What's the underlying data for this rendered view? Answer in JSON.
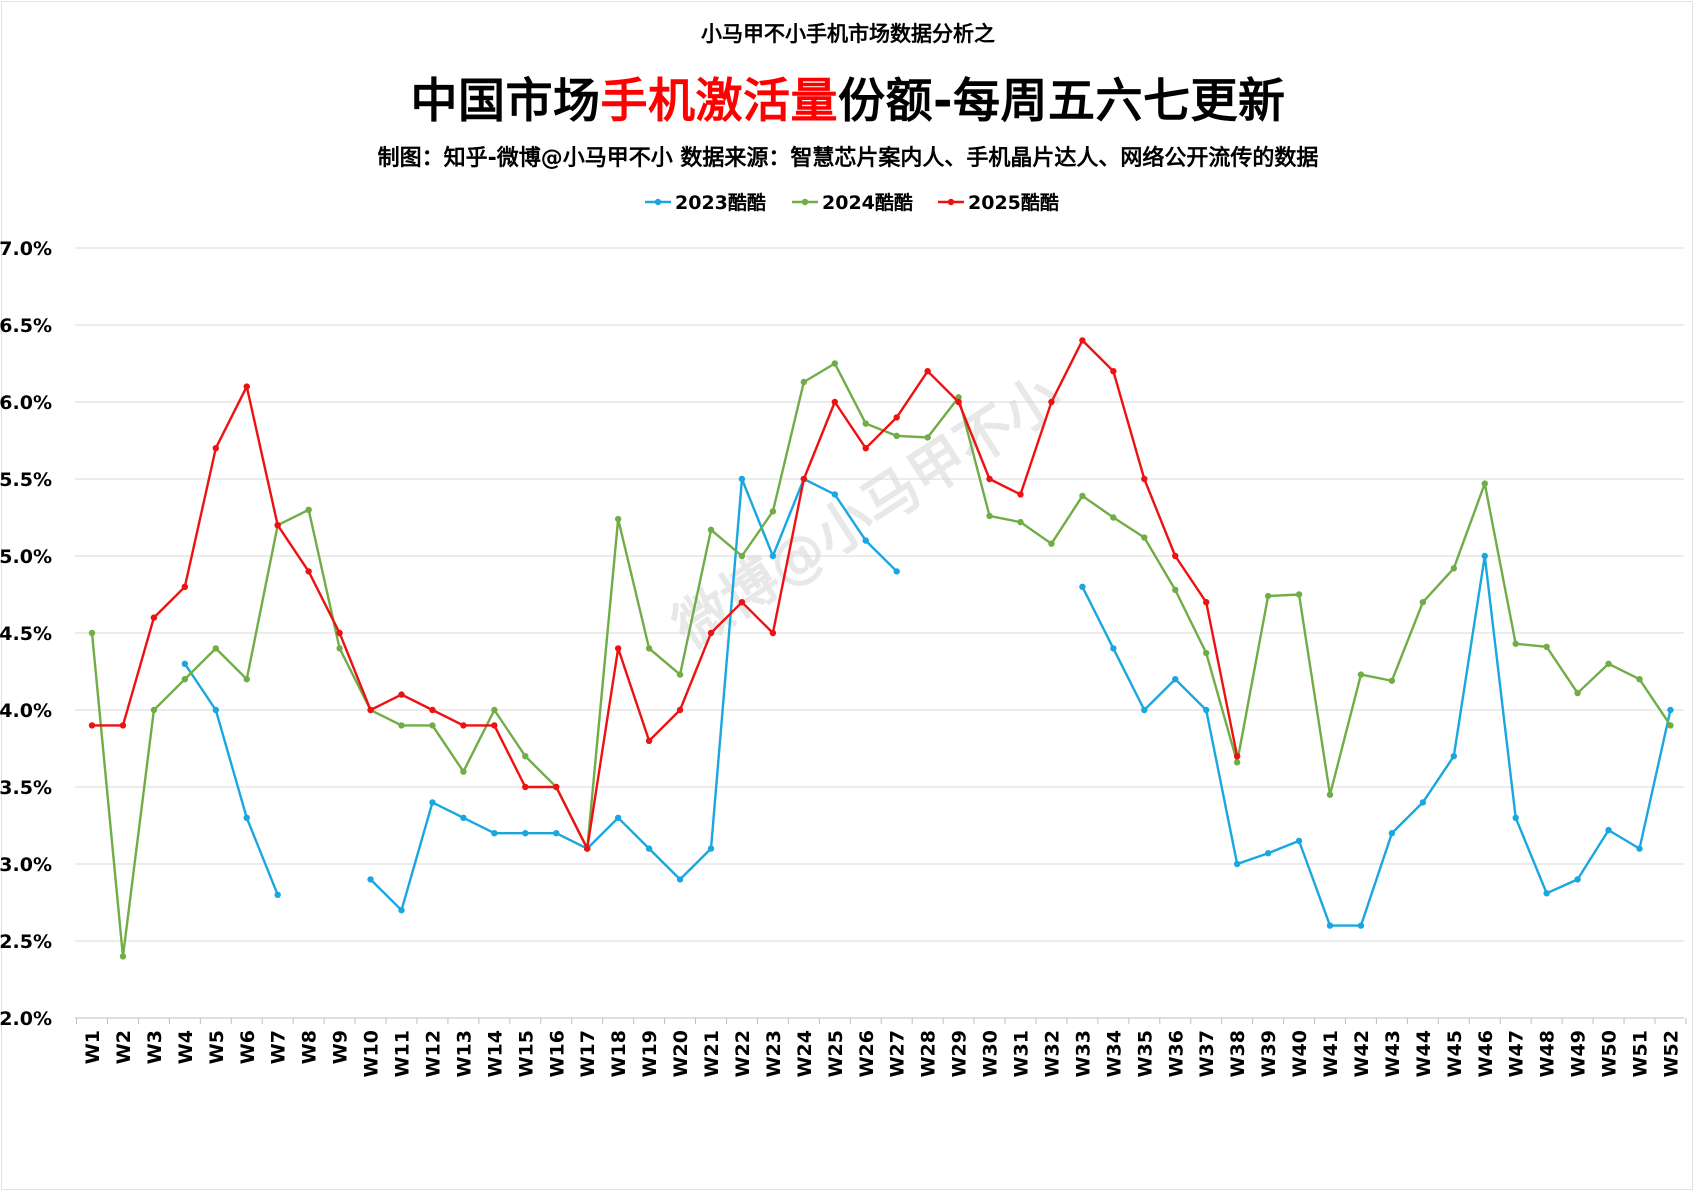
{
  "header": {
    "supertitle": "小马甲不小手机市场数据分析之",
    "title_before": "中国市场",
    "title_highlight": "手机激活量",
    "title_after": "份额-每周五六七更新",
    "subtitle": "制图：知乎-微博@小马甲不小   数据来源：智慧芯片案内人、手机晶片达人、网络公开流传的数据",
    "watermark": "微博@小马甲不小"
  },
  "colors": {
    "highlight": "#ff0000",
    "grid": "#d9d9d9",
    "axis": "#bfbfbf"
  },
  "chart_data": {
    "type": "line",
    "title": "中国市场手机激活量份额-每周五六七更新",
    "xlabel": "",
    "ylabel": "",
    "ylim": [
      0.02,
      0.07
    ],
    "yticks": [
      "2.0%",
      "2.5%",
      "3.0%",
      "3.5%",
      "4.0%",
      "4.5%",
      "5.0%",
      "5.5%",
      "6.0%",
      "6.5%",
      "7.0%"
    ],
    "grid": true,
    "legend_position": "top-center",
    "categories": [
      "W1",
      "W2",
      "W3",
      "W4",
      "W5",
      "W6",
      "W7",
      "W8",
      "W9",
      "W10",
      "W11",
      "W12",
      "W13",
      "W14",
      "W15",
      "W16",
      "W17",
      "W18",
      "W19",
      "W20",
      "W21",
      "W22",
      "W23",
      "W24",
      "W25",
      "W26",
      "W27",
      "W28",
      "W29",
      "W30",
      "W31",
      "W32",
      "W33",
      "W34",
      "W35",
      "W36",
      "W37",
      "W38",
      "W39",
      "W40",
      "W41",
      "W42",
      "W43",
      "W44",
      "W45",
      "W46",
      "W47",
      "W48",
      "W49",
      "W50",
      "W51",
      "W52"
    ],
    "series": [
      {
        "name": "2023酷酷",
        "color": "#1aa7e0",
        "values": [
          null,
          null,
          null,
          0.043,
          0.04,
          0.033,
          0.028,
          null,
          null,
          0.029,
          0.027,
          0.034,
          0.033,
          0.032,
          0.032,
          0.032,
          0.031,
          0.033,
          0.031,
          0.029,
          0.031,
          0.055,
          0.05,
          0.055,
          0.054,
          0.051,
          0.049,
          null,
          null,
          null,
          null,
          null,
          0.048,
          0.044,
          0.04,
          0.042,
          0.04,
          0.03,
          0.0307,
          0.0315,
          0.026,
          0.026,
          0.032,
          0.034,
          0.037,
          0.05,
          0.033,
          0.0281,
          0.029,
          0.0322,
          0.031,
          0.04
        ]
      },
      {
        "name": "2024酷酷",
        "color": "#70ad47",
        "values": [
          0.045,
          0.024,
          0.04,
          0.042,
          0.044,
          0.042,
          0.052,
          0.053,
          0.044,
          0.04,
          0.039,
          0.039,
          0.036,
          0.04,
          0.037,
          0.035,
          0.031,
          0.0524,
          0.044,
          0.0423,
          0.0517,
          0.05,
          0.0529,
          0.0613,
          0.0625,
          0.0586,
          0.0578,
          0.0577,
          0.0603,
          0.0526,
          0.0522,
          0.0508,
          0.0539,
          0.0525,
          0.0512,
          0.0478,
          0.0437,
          0.0366,
          0.0474,
          0.0475,
          0.0345,
          0.0423,
          0.0419,
          0.047,
          0.0492,
          0.0547,
          0.0443,
          0.0441,
          0.0411,
          0.043,
          0.042,
          0.039
        ]
      },
      {
        "name": "2025酷酷",
        "color": "#ee1111",
        "values": [
          0.039,
          0.039,
          0.046,
          0.048,
          0.057,
          0.061,
          0.052,
          0.049,
          0.045,
          0.04,
          0.041,
          0.04,
          0.039,
          0.039,
          0.035,
          0.035,
          0.031,
          0.044,
          0.038,
          0.04,
          0.045,
          0.047,
          0.045,
          0.055,
          0.06,
          0.057,
          0.059,
          0.062,
          0.06,
          0.055,
          0.054,
          0.06,
          0.064,
          0.062,
          0.055,
          0.05,
          0.047,
          0.037,
          null,
          null,
          null,
          null,
          null,
          null,
          null,
          null,
          null,
          null,
          null,
          null,
          null,
          null
        ]
      }
    ]
  }
}
